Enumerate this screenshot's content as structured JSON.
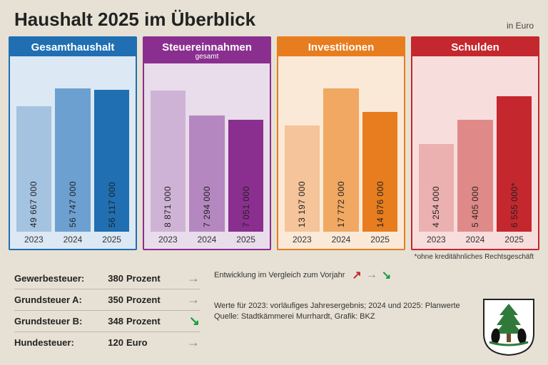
{
  "title": "Haushalt 2025 im Überblick",
  "unit": "in Euro",
  "years": [
    "2023",
    "2024",
    "2025"
  ],
  "panels": [
    {
      "title": "Gesamthaushalt",
      "subtitle": "",
      "border": "#1f6fb2",
      "head_bg": "#1f6fb2",
      "body_bg": "#dce8f3",
      "bar_colors": [
        "#a4c3e0",
        "#6ca0d0",
        "#1f6fb2"
      ],
      "values": [
        "49 667 000",
        "56 747 000",
        "56 117 000"
      ],
      "heights": [
        176,
        201,
        199
      ]
    },
    {
      "title": "Steuereinnahmen",
      "subtitle": "gesamt",
      "border": "#8a2f8f",
      "head_bg": "#8a2f8f",
      "body_bg": "#e9dceb",
      "bar_colors": [
        "#cfb3d6",
        "#b587c0",
        "#8a2f8f"
      ],
      "values": [
        "8 871 000",
        "7 294 000",
        "7 051 000"
      ],
      "heights": [
        198,
        163,
        157
      ]
    },
    {
      "title": "Investitionen",
      "subtitle": "",
      "border": "#e77d1e",
      "head_bg": "#e77d1e",
      "body_bg": "#fbe9d8",
      "bar_colors": [
        "#f5c49a",
        "#f0a862",
        "#e77d1e"
      ],
      "values": [
        "13 197 000",
        "17 772 000",
        "14 876 000"
      ],
      "heights": [
        149,
        201,
        168
      ]
    },
    {
      "title": "Schulden",
      "subtitle": "",
      "border": "#c4272d",
      "head_bg": "#c4272d",
      "body_bg": "#f7dedd",
      "bar_colors": [
        "#eab1b0",
        "#df8a88",
        "#c4272d"
      ],
      "values": [
        "4 254 000",
        "5 405 000",
        "6 555 000*"
      ],
      "heights": [
        123,
        157,
        190
      ]
    }
  ],
  "footnote": "*ohne kreditähnliches Rechtsgeschäft",
  "taxes": [
    {
      "name": "Gewerbesteuer:",
      "value": "380",
      "unit": "Prozent",
      "arrow": "→",
      "arrow_color": "#8a8a80"
    },
    {
      "name": "Grundsteuer A:",
      "value": "350",
      "unit": "Prozent",
      "arrow": "→",
      "arrow_color": "#8a8a80"
    },
    {
      "name": "Grundsteuer B:",
      "value": "348",
      "unit": "Prozent",
      "arrow": "↘",
      "arrow_color": "#149a3a"
    },
    {
      "name": "Hundesteuer:",
      "value": "120",
      "unit": "Euro",
      "arrow": "→",
      "arrow_color": "#8a8a80"
    }
  ],
  "legend": {
    "label": "Entwicklung im Vergleich zum Vorjahr",
    "arrows": [
      {
        "glyph": "↗",
        "color": "#c4272d"
      },
      {
        "glyph": "→",
        "color": "#8a8a80"
      },
      {
        "glyph": "↘",
        "color": "#149a3a"
      }
    ]
  },
  "notes_line1": "Werte für 2023: vorläufiges Jahresergebnis; 2024 und 2025: Planwerte",
  "notes_line2": "Quelle: Stadtkämmerei Murrhardt, Grafik: BKZ",
  "crest": {
    "shield_fill": "#ffffff",
    "shield_stroke": "#222222",
    "tree_fill": "#2f7a3a",
    "animal_fill": "#111111"
  }
}
